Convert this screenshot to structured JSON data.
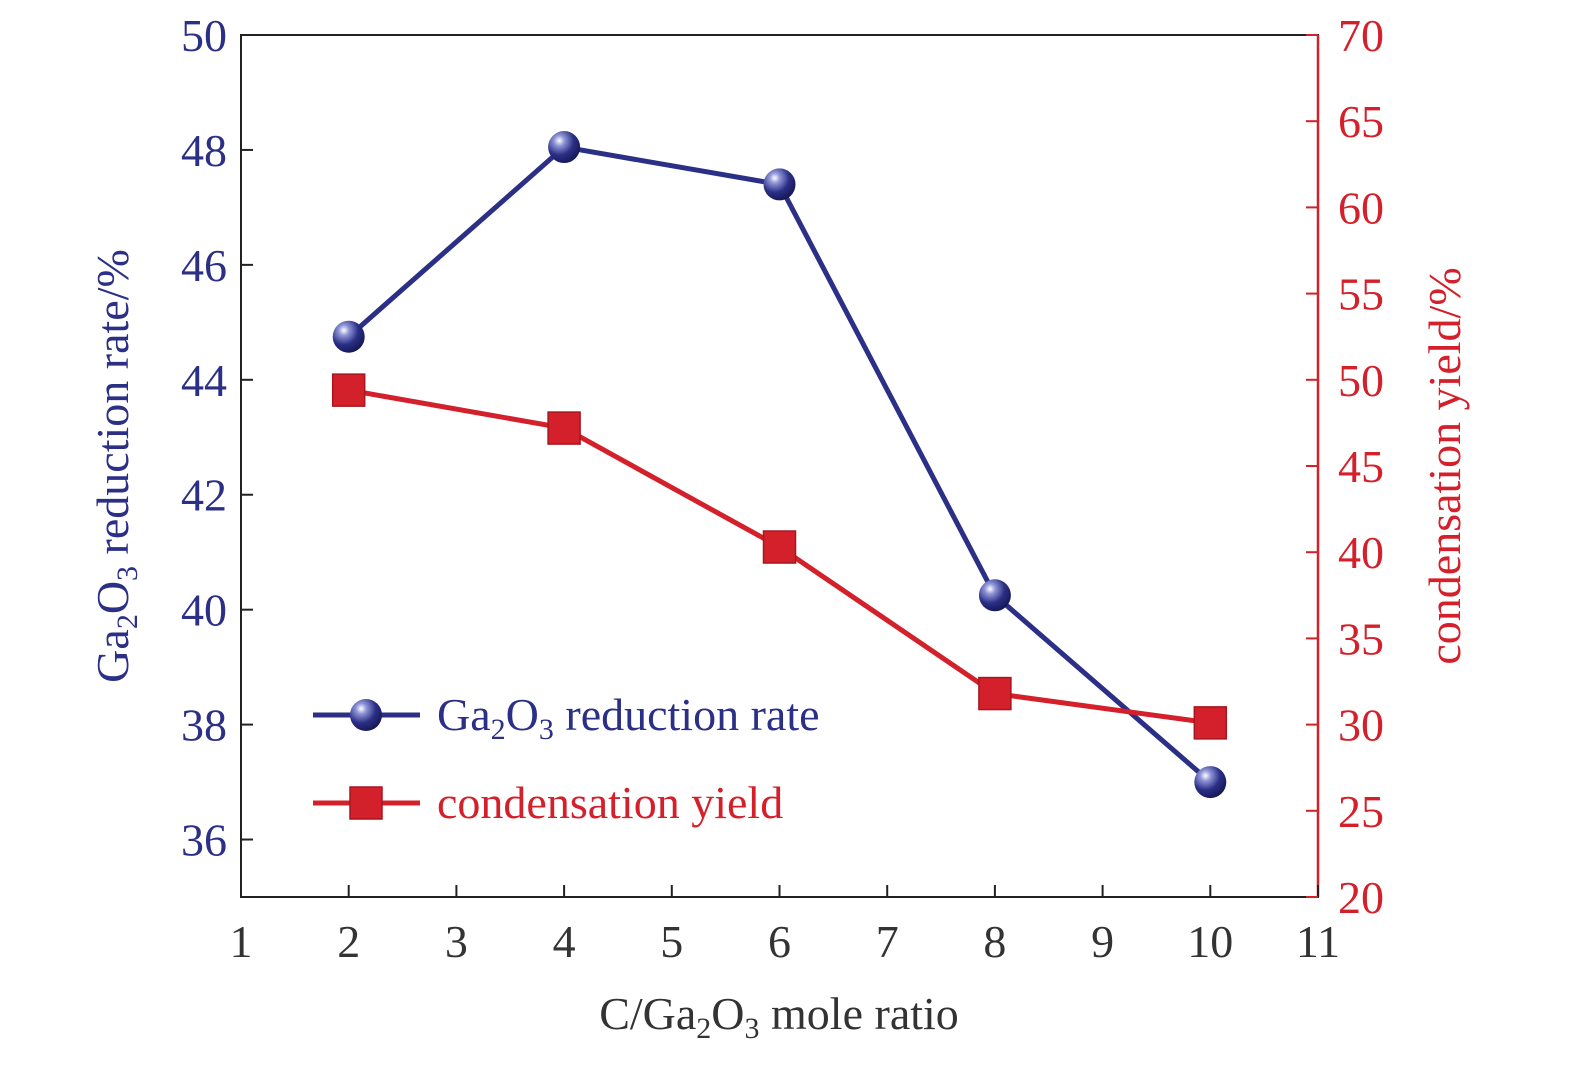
{
  "chart_data": {
    "type": "line",
    "x": [
      2,
      4,
      6,
      8,
      10
    ],
    "xlabel": {
      "pre": "C/Ga",
      "sub1": "2",
      "mid": "O",
      "sub2": "3",
      "post": " mole ratio"
    },
    "xlim": [
      1,
      11
    ],
    "xticks": [
      1,
      2,
      3,
      4,
      5,
      6,
      7,
      8,
      9,
      10,
      11
    ],
    "y_left": {
      "label": {
        "pre": "Ga",
        "sub1": "2",
        "mid": "O",
        "sub2": "3",
        "post": " reduction rate/%"
      },
      "lim": [
        35,
        50
      ],
      "ticks": [
        36,
        38,
        40,
        42,
        44,
        46,
        48,
        50
      ],
      "color": "#2b2f86"
    },
    "y_right": {
      "label": "condensation yield/%",
      "lim": [
        20,
        70
      ],
      "ticks": [
        20,
        25,
        30,
        35,
        40,
        45,
        50,
        55,
        60,
        65,
        70
      ],
      "color": "#d3202a"
    },
    "series": [
      {
        "name": {
          "pre": "Ga",
          "sub1": "2",
          "mid": "O",
          "sub2": "3",
          "post": " reduction rate"
        },
        "axis": "left",
        "marker": "circle",
        "color": "#2b2f86",
        "values": [
          44.75,
          48.05,
          47.4,
          40.25,
          37.0
        ]
      },
      {
        "name": "condensation yield",
        "axis": "right",
        "marker": "square",
        "color": "#d3202a",
        "values": [
          49.4,
          47.2,
          40.3,
          31.8,
          30.1
        ]
      }
    ],
    "legend_position": "lower-left",
    "grid": false
  }
}
